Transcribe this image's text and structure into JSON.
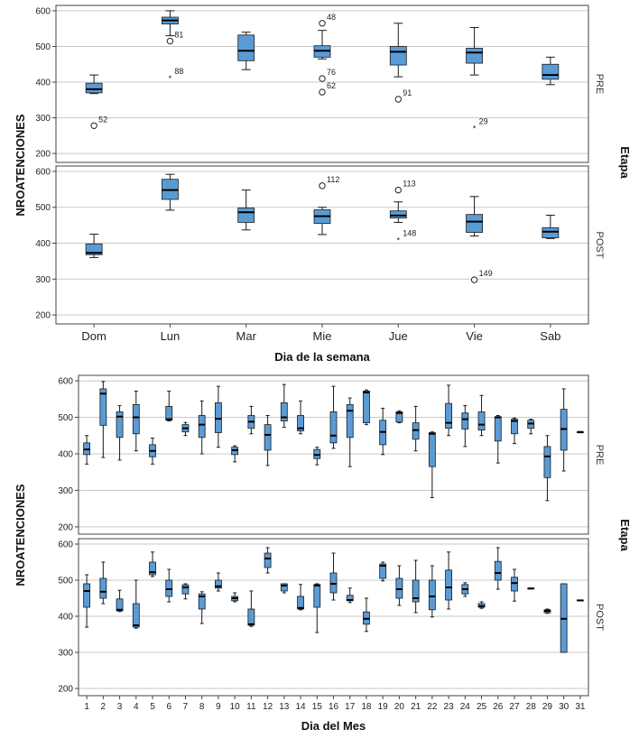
{
  "colors": {
    "box": "#5b9bd5",
    "box_stroke": "#1a1a1a",
    "grid": "#c8c8c8",
    "frame": "#444444"
  },
  "chart_data": [
    {
      "type": "boxplot",
      "xlabel": "Dia de la semana",
      "ylabel": "NROATENCIONES",
      "facet_label": "Etapa",
      "yticks": [
        200,
        300,
        400,
        500,
        600
      ],
      "ylim": [
        175,
        615
      ],
      "categories": [
        "Dom",
        "Lun",
        "Mar",
        "Mie",
        "Jue",
        "Vie",
        "Sab"
      ],
      "panels": [
        {
          "name": "PRE",
          "boxes": [
            {
              "min": 368,
              "q1": 370,
              "median": 380,
              "q3": 397,
              "max": 420
            },
            {
              "min": 530,
              "q1": 563,
              "median": 573,
              "q3": 582,
              "max": 600
            },
            {
              "min": 435,
              "q1": 460,
              "median": 488,
              "q3": 532,
              "max": 540
            },
            {
              "min": 465,
              "q1": 470,
              "median": 488,
              "q3": 502,
              "max": 545
            },
            {
              "min": 415,
              "q1": 448,
              "median": 485,
              "q3": 500,
              "max": 565
            },
            {
              "min": 420,
              "q1": 453,
              "median": 483,
              "q3": 495,
              "max": 553
            },
            {
              "min": 393,
              "q1": 408,
              "median": 420,
              "q3": 450,
              "max": 470
            }
          ],
          "outliers": [
            {
              "cat": "Dom",
              "value": 278,
              "label": "52",
              "marker": "circle"
            },
            {
              "cat": "Lun",
              "value": 515,
              "label": "81",
              "marker": "circle"
            },
            {
              "cat": "Lun",
              "value": 413,
              "label": "88",
              "marker": "star"
            },
            {
              "cat": "Mie",
              "value": 565,
              "label": "48",
              "marker": "circle"
            },
            {
              "cat": "Mie",
              "value": 410,
              "label": "76",
              "marker": "circle"
            },
            {
              "cat": "Mie",
              "value": 372,
              "label": "62",
              "marker": "circle"
            },
            {
              "cat": "Jue",
              "value": 352,
              "label": "91",
              "marker": "circle"
            },
            {
              "cat": "Vie",
              "value": 272,
              "label": "29",
              "marker": "star"
            }
          ]
        },
        {
          "name": "POST",
          "boxes": [
            {
              "min": 360,
              "q1": 368,
              "median": 373,
              "q3": 398,
              "max": 425
            },
            {
              "min": 492,
              "q1": 522,
              "median": 548,
              "q3": 578,
              "max": 592
            },
            {
              "min": 437,
              "q1": 458,
              "median": 486,
              "q3": 498,
              "max": 548
            },
            {
              "min": 424,
              "q1": 455,
              "median": 475,
              "q3": 493,
              "max": 500
            },
            {
              "min": 458,
              "q1": 470,
              "median": 477,
              "q3": 490,
              "max": 515
            },
            {
              "min": 420,
              "q1": 430,
              "median": 460,
              "q3": 480,
              "max": 530
            },
            {
              "min": 413,
              "q1": 415,
              "median": 432,
              "q3": 443,
              "max": 478
            }
          ],
          "outliers": [
            {
              "cat": "Mie",
              "value": 560,
              "label": "112",
              "marker": "circle"
            },
            {
              "cat": "Jue",
              "value": 548,
              "label": "113",
              "marker": "circle"
            },
            {
              "cat": "Jue",
              "value": 410,
              "label": "148",
              "marker": "star"
            },
            {
              "cat": "Vie",
              "value": 298,
              "label": "149",
              "marker": "circle"
            }
          ]
        }
      ]
    },
    {
      "type": "boxplot",
      "xlabel": "Dia del Mes",
      "ylabel": "NROATENCIONES",
      "facet_label": "Etapa",
      "yticks": [
        200,
        300,
        400,
        500,
        600
      ],
      "ylim": [
        180,
        615
      ],
      "categories": [
        "1",
        "2",
        "3",
        "4",
        "5",
        "6",
        "7",
        "8",
        "9",
        "10",
        "11",
        "12",
        "13",
        "14",
        "15",
        "16",
        "17",
        "18",
        "19",
        "20",
        "21",
        "22",
        "23",
        "24",
        "25",
        "26",
        "27",
        "28",
        "29",
        "30",
        "31"
      ],
      "panels": [
        {
          "name": "PRE",
          "boxes": [
            {
              "min": 372,
              "q1": 398,
              "median": 412,
              "q3": 430,
              "max": 450
            },
            {
              "min": 390,
              "q1": 478,
              "median": 565,
              "q3": 578,
              "max": 598
            },
            {
              "min": 383,
              "q1": 445,
              "median": 502,
              "q3": 515,
              "max": 532
            },
            {
              "min": 408,
              "q1": 455,
              "median": 500,
              "q3": 535,
              "max": 572
            },
            {
              "min": 372,
              "q1": 392,
              "median": 408,
              "q3": 425,
              "max": 443
            },
            {
              "min": 490,
              "q1": 492,
              "median": 495,
              "q3": 530,
              "max": 572
            },
            {
              "min": 450,
              "q1": 460,
              "median": 470,
              "q3": 480,
              "max": 486
            },
            {
              "min": 400,
              "q1": 445,
              "median": 480,
              "q3": 505,
              "max": 545
            },
            {
              "min": 418,
              "q1": 458,
              "median": 496,
              "q3": 540,
              "max": 585
            },
            {
              "min": 378,
              "q1": 398,
              "median": 410,
              "q3": 418,
              "max": 422
            },
            {
              "min": 455,
              "q1": 470,
              "median": 488,
              "q3": 505,
              "max": 530
            },
            {
              "min": 368,
              "q1": 410,
              "median": 452,
              "q3": 480,
              "max": 505
            },
            {
              "min": 473,
              "q1": 490,
              "median": 500,
              "q3": 540,
              "max": 590
            },
            {
              "min": 455,
              "q1": 463,
              "median": 470,
              "q3": 505,
              "max": 545
            },
            {
              "min": 370,
              "q1": 387,
              "median": 397,
              "q3": 412,
              "max": 418
            },
            {
              "min": 415,
              "q1": 430,
              "median": 450,
              "q3": 515,
              "max": 585
            },
            {
              "min": 365,
              "q1": 445,
              "median": 518,
              "q3": 535,
              "max": 553
            },
            {
              "min": 480,
              "q1": 485,
              "median": 568,
              "q3": 572,
              "max": 575
            },
            {
              "min": 398,
              "q1": 425,
              "median": 460,
              "q3": 492,
              "max": 525
            },
            {
              "min": 485,
              "q1": 487,
              "median": 512,
              "q3": 515,
              "max": 518
            },
            {
              "min": 408,
              "q1": 440,
              "median": 465,
              "q3": 485,
              "max": 530
            },
            {
              "min": 280,
              "q1": 365,
              "median": 455,
              "q3": 458,
              "max": 460
            },
            {
              "min": 450,
              "q1": 470,
              "median": 485,
              "q3": 538,
              "max": 588
            },
            {
              "min": 420,
              "q1": 468,
              "median": 495,
              "q3": 512,
              "max": 532
            },
            {
              "min": 450,
              "q1": 465,
              "median": 480,
              "q3": 515,
              "max": 560
            },
            {
              "min": 375,
              "q1": 435,
              "median": 500,
              "q3": 502,
              "max": 505
            },
            {
              "min": 428,
              "q1": 455,
              "median": 490,
              "q3": 495,
              "max": 498
            },
            {
              "min": 455,
              "q1": 470,
              "median": 483,
              "q3": 492,
              "max": 495
            },
            {
              "min": 272,
              "q1": 335,
              "median": 393,
              "q3": 420,
              "max": 450
            },
            {
              "min": 353,
              "q1": 410,
              "median": 468,
              "q3": 522,
              "max": 578
            },
            {
              "min": 458,
              "q1": 458,
              "median": 460,
              "q3": 460,
              "max": 460
            }
          ],
          "outliers": []
        },
        {
          "name": "POST",
          "boxes": [
            {
              "min": 370,
              "q1": 425,
              "median": 470,
              "q3": 490,
              "max": 515
            },
            {
              "min": 435,
              "q1": 450,
              "median": 468,
              "q3": 505,
              "max": 550
            },
            {
              "min": 413,
              "q1": 415,
              "median": 418,
              "q3": 448,
              "max": 472
            },
            {
              "min": 367,
              "q1": 370,
              "median": 375,
              "q3": 435,
              "max": 500
            },
            {
              "min": 510,
              "q1": 515,
              "median": 522,
              "q3": 550,
              "max": 578
            },
            {
              "min": 440,
              "q1": 455,
              "median": 475,
              "q3": 500,
              "max": 530
            },
            {
              "min": 448,
              "q1": 462,
              "median": 480,
              "q3": 487,
              "max": 490
            },
            {
              "min": 380,
              "q1": 420,
              "median": 455,
              "q3": 462,
              "max": 468
            },
            {
              "min": 470,
              "q1": 478,
              "median": 483,
              "q3": 500,
              "max": 520
            },
            {
              "min": 440,
              "q1": 443,
              "median": 450,
              "q3": 455,
              "max": 465
            },
            {
              "min": 372,
              "q1": 375,
              "median": 378,
              "q3": 420,
              "max": 470
            },
            {
              "min": 520,
              "q1": 535,
              "median": 560,
              "q3": 575,
              "max": 590
            },
            {
              "min": 465,
              "q1": 470,
              "median": 485,
              "q3": 490,
              "max": 490
            },
            {
              "min": 418,
              "q1": 420,
              "median": 423,
              "q3": 455,
              "max": 488
            },
            {
              "min": 355,
              "q1": 425,
              "median": 485,
              "q3": 488,
              "max": 490
            },
            {
              "min": 445,
              "q1": 465,
              "median": 490,
              "q3": 520,
              "max": 575
            },
            {
              "min": 438,
              "q1": 443,
              "median": 445,
              "q3": 458,
              "max": 478
            },
            {
              "min": 358,
              "q1": 378,
              "median": 393,
              "q3": 412,
              "max": 450
            },
            {
              "min": 498,
              "q1": 505,
              "median": 540,
              "q3": 545,
              "max": 550
            },
            {
              "min": 430,
              "q1": 450,
              "median": 475,
              "q3": 505,
              "max": 540
            },
            {
              "min": 410,
              "q1": 440,
              "median": 450,
              "q3": 500,
              "max": 555
            },
            {
              "min": 398,
              "q1": 418,
              "median": 455,
              "q3": 500,
              "max": 540
            },
            {
              "min": 420,
              "q1": 445,
              "median": 480,
              "q3": 528,
              "max": 578
            },
            {
              "min": 455,
              "q1": 462,
              "median": 475,
              "q3": 488,
              "max": 493
            },
            {
              "min": 422,
              "q1": 425,
              "median": 428,
              "q3": 435,
              "max": 440
            },
            {
              "min": 475,
              "q1": 500,
              "median": 520,
              "q3": 552,
              "max": 590
            },
            {
              "min": 442,
              "q1": 470,
              "median": 492,
              "q3": 508,
              "max": 530
            },
            {
              "min": 476,
              "q1": 476,
              "median": 477,
              "q3": 478,
              "max": 478
            },
            {
              "min": 408,
              "q1": 410,
              "median": 415,
              "q3": 418,
              "max": 420
            },
            {
              "min": 300,
              "q1": 300,
              "median": 393,
              "q3": 490,
              "max": 490
            },
            {
              "min": 443,
              "q1": 443,
              "median": 444,
              "q3": 445,
              "max": 445
            }
          ],
          "outliers": []
        }
      ]
    }
  ]
}
